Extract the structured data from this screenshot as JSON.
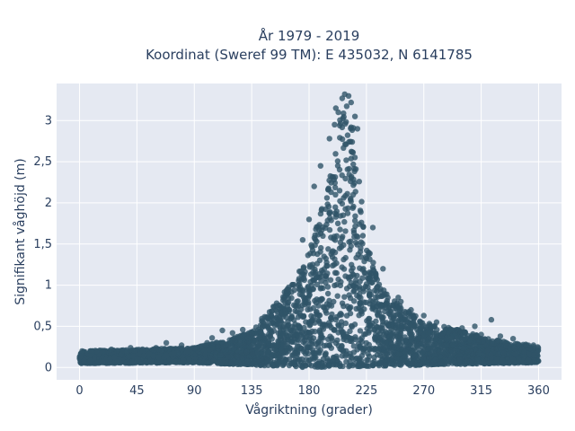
{
  "chart_data": {
    "type": "scatter",
    "title_line1": "År 1979 - 2019",
    "title_line2": "Koordinat (Sweref 99 TM): E 435032, N 6141785",
    "xlabel": "Vågriktning (grader)",
    "ylabel": "Signifikant våghöjd (m)",
    "xlim": [
      -18,
      378
    ],
    "ylim": [
      -0.15,
      3.45
    ],
    "x_ticks": [
      0,
      45,
      90,
      135,
      180,
      225,
      270,
      315,
      360
    ],
    "x_tick_labels": [
      "0",
      "45",
      "90",
      "135",
      "180",
      "225",
      "270",
      "315",
      "360"
    ],
    "y_ticks": [
      0,
      0.5,
      1,
      1.5,
      2,
      2.5,
      3
    ],
    "y_tick_labels": [
      "0",
      "0,5",
      "1",
      "1,5",
      "2",
      "2,5",
      "3"
    ],
    "grid": true,
    "series": [
      {
        "marker_color": "#2f5468",
        "envelope_upper": [
          [
            0,
            0.2
          ],
          [
            45,
            0.22
          ],
          [
            90,
            0.24
          ],
          [
            120,
            0.35
          ],
          [
            135,
            0.45
          ],
          [
            160,
            0.9
          ],
          [
            180,
            1.4
          ],
          [
            195,
            2.2
          ],
          [
            205,
            3.1
          ],
          [
            210,
            3.3
          ],
          [
            215,
            2.9
          ],
          [
            225,
            1.5
          ],
          [
            240,
            0.9
          ],
          [
            270,
            0.55
          ],
          [
            300,
            0.45
          ],
          [
            320,
            0.35
          ],
          [
            360,
            0.25
          ]
        ],
        "envelope_lower": [
          [
            0,
            0.05
          ],
          [
            90,
            0.06
          ],
          [
            180,
            0.0
          ],
          [
            270,
            0.03
          ],
          [
            360,
            0.06
          ]
        ],
        "outliers": [
          [
            206,
            3.27
          ],
          [
            208,
            3.32
          ],
          [
            211,
            3.3
          ],
          [
            213,
            3.22
          ],
          [
            203,
            3.1
          ],
          [
            200,
            2.95
          ],
          [
            196,
            2.78
          ],
          [
            218,
            2.9
          ],
          [
            216,
            3.05
          ],
          [
            201,
            3.15
          ],
          [
            184,
            2.2
          ],
          [
            189,
            2.45
          ],
          [
            180,
            1.8
          ],
          [
            175,
            1.55
          ],
          [
            230,
            1.7
          ],
          [
            238,
            1.2
          ],
          [
            260,
            0.7
          ],
          [
            270,
            0.63
          ],
          [
            292,
            0.45
          ],
          [
            310,
            0.5
          ],
          [
            323,
            0.58
          ],
          [
            330,
            0.38
          ],
          [
            340,
            0.35
          ],
          [
            350,
            0.28
          ],
          [
            356,
            0.27
          ],
          [
            112,
            0.45
          ],
          [
            120,
            0.42
          ],
          [
            128,
            0.46
          ],
          [
            104,
            0.36
          ],
          [
            100,
            0.3
          ],
          [
            60,
            0.24
          ],
          [
            68,
            0.3
          ],
          [
            80,
            0.27
          ],
          [
            40,
            0.24
          ],
          [
            25,
            0.22
          ],
          [
            10,
            0.2
          ],
          [
            2,
            0.2
          ],
          [
            148,
            0.62
          ],
          [
            157,
            0.75
          ],
          [
            164,
            0.95
          ],
          [
            250,
            0.85
          ],
          [
            280,
            0.55
          ],
          [
            300,
            0.48
          ],
          [
            315,
            0.4
          ],
          [
            252,
            0.8
          ]
        ]
      }
    ]
  }
}
